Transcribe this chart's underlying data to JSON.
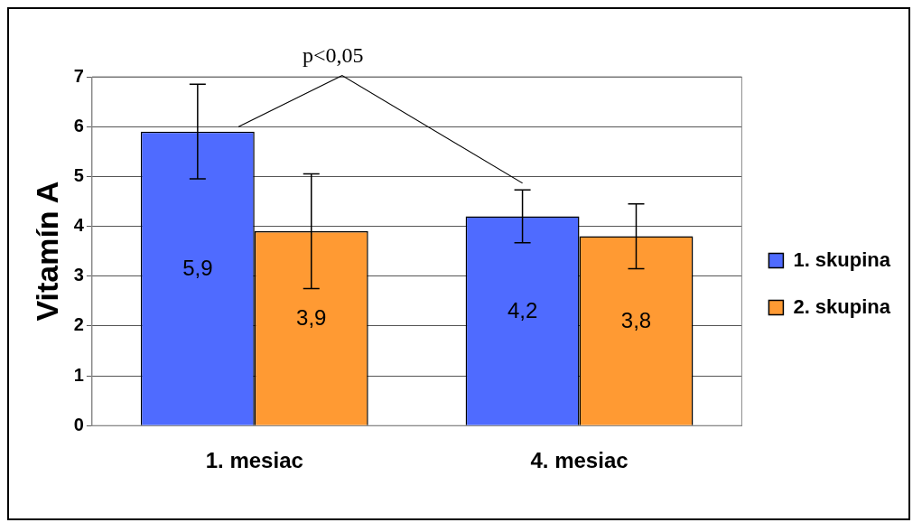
{
  "chart_data": {
    "type": "bar",
    "ylabel": "Vitamín A",
    "categories": [
      "1. mesiac",
      "4. mesiac"
    ],
    "series": [
      {
        "name": "1. skupina",
        "color": "#4f6bff",
        "values": [
          5.9,
          4.2
        ],
        "errors": [
          0.95,
          0.53
        ],
        "value_labels": [
          "5,9",
          "4,2"
        ]
      },
      {
        "name": "2. skupina",
        "color": "#ff9a33",
        "values": [
          3.9,
          3.8
        ],
        "errors": [
          1.15,
          0.65
        ],
        "value_labels": [
          "3,9",
          "3,8"
        ]
      }
    ],
    "ylim": [
      0,
      7
    ],
    "yticks": [
      0,
      1,
      2,
      3,
      4,
      5,
      6,
      7
    ],
    "grid": "y",
    "legend": "right",
    "annotations": [
      "p<0,05"
    ]
  }
}
